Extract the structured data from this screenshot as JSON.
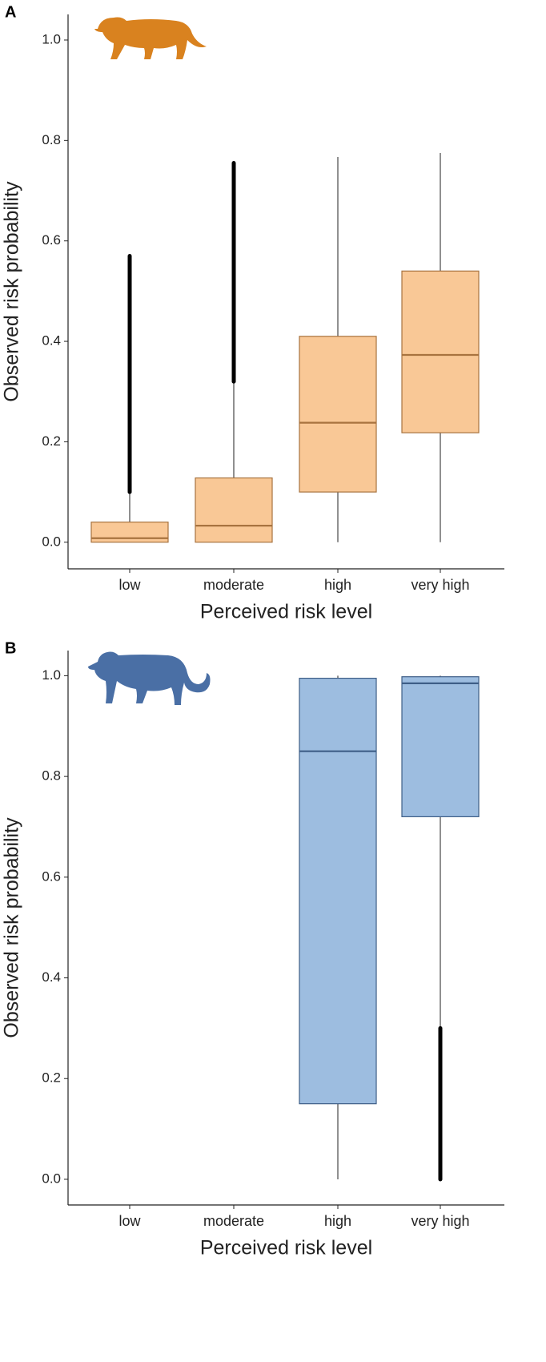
{
  "chart_data": [
    {
      "type": "box",
      "panel_label": "A",
      "x_label": "Perceived risk level",
      "y_label": "Observed risk probability",
      "categories": [
        "low",
        "moderate",
        "high",
        "very high"
      ],
      "boxes": [
        {
          "whisker_low": 0,
          "q1": 0,
          "median": 0.008,
          "q3": 0.04,
          "whisker_high": 0.1,
          "outlier_span": [
            0.1,
            0.57
          ]
        },
        {
          "whisker_low": 0,
          "q1": 0,
          "median": 0.033,
          "q3": 0.128,
          "whisker_high": 0.32,
          "outlier_span": [
            0.32,
            0.755
          ]
        },
        {
          "whisker_low": 0,
          "q1": 0.1,
          "median": 0.238,
          "q3": 0.41,
          "whisker_high": 0.767
        },
        {
          "whisker_low": 0,
          "q1": 0.218,
          "median": 0.373,
          "q3": 0.54,
          "whisker_high": 0.775
        }
      ],
      "color": "#f9c896",
      "edge_color": "#a8733f",
      "ylim": [
        -0.053,
        1.051
      ],
      "yticks": [
        {
          "value": 0,
          "label": "0.0"
        },
        {
          "value": 0.2,
          "label": "0.2"
        },
        {
          "value": 0.4,
          "label": "0.4"
        },
        {
          "value": 0.6,
          "label": "0.6"
        },
        {
          "value": 0.8,
          "label": "0.8"
        },
        {
          "value": 1,
          "label": "1.0"
        }
      ]
    },
    {
      "type": "box",
      "panel_label": "B",
      "x_label": "Perceived risk level",
      "y_label": "Observed risk probability",
      "categories": [
        "low",
        "moderate",
        "high",
        "very high"
      ],
      "boxes": [
        null,
        null,
        {
          "whisker_low": 0,
          "q1": 0.15,
          "median": 0.85,
          "q3": 0.995,
          "whisker_high": 1
        },
        {
          "whisker_low": 0.3,
          "q1": 0.72,
          "median": 0.985,
          "q3": 0.998,
          "whisker_high": 1,
          "outlier_span": [
            0,
            0.3
          ]
        }
      ],
      "color": "#9dbde0",
      "edge_color": "#3e5e87",
      "ylim": [
        -0.051,
        1.05
      ],
      "yticks": [
        {
          "value": 0,
          "label": "0.0"
        },
        {
          "value": 0.2,
          "label": "0.2"
        },
        {
          "value": 0.4,
          "label": "0.4"
        },
        {
          "value": 0.6,
          "label": "0.6"
        },
        {
          "value": 0.8,
          "label": "0.8"
        },
        {
          "value": 1,
          "label": "1.0"
        }
      ]
    }
  ]
}
